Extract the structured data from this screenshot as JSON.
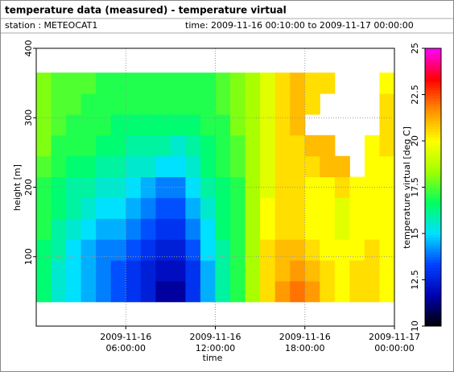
{
  "chart_data": {
    "type": "heatmap",
    "title": "temperature data (measured) - temperature virtual",
    "subtitle_left": "station : METEOCAT1",
    "subtitle_right": "time: 2009-11-16 00:10:00 to 2009-11-17 00:00:00",
    "x_label": "time",
    "y_label": "height [m]",
    "colorbar_label": "temperature virtual [deg C]",
    "xlim": [
      0,
      24
    ],
    "xticks": [
      {
        "value": 6,
        "label": "2009-11-16\n06:00:00"
      },
      {
        "value": 12,
        "label": "2009-11-16\n12:00:00"
      },
      {
        "value": 18,
        "label": "2009-11-16\n18:00:00"
      },
      {
        "value": 24,
        "label": "2009-11-17\n00:00:00"
      }
    ],
    "ylim": [
      0,
      400
    ],
    "yticks": [
      100,
      200,
      300,
      400
    ],
    "zlim": [
      10,
      25
    ],
    "zticks": [
      10,
      12.5,
      15,
      17.5,
      20,
      22.5,
      25
    ],
    "colorscale": [
      "#000000",
      "#0000b0",
      "#0040ff",
      "#00e0ff",
      "#00ff60",
      "#a0ff00",
      "#ffff00",
      "#ff9000",
      "#ff0000",
      "#ff00ff"
    ],
    "grid": true,
    "x": [
      0.5,
      1.5,
      2.5,
      3.5,
      4.5,
      5.5,
      6.5,
      7.5,
      8.5,
      9.5,
      10.5,
      11.5,
      12.5,
      13.5,
      14.5,
      15.5,
      16.5,
      17.5,
      18.5,
      19.5,
      20.5,
      21.5,
      22.5,
      23.5
    ],
    "y": [
      50,
      80,
      110,
      140,
      170,
      200,
      230,
      260,
      290,
      320,
      350
    ],
    "z": [
      [
        16.5,
        15.5,
        15,
        14.5,
        14,
        13.5,
        13,
        12.5,
        11.5,
        11.5,
        13,
        14.5,
        16,
        17,
        18.5,
        20.5,
        21.5,
        22,
        21.5,
        20.5,
        20,
        20.5,
        20.5,
        20
      ],
      [
        16.5,
        15.5,
        15,
        14.5,
        14,
        13.5,
        13,
        12.5,
        12,
        12,
        13,
        14.5,
        16,
        17,
        18.5,
        20.5,
        21,
        21.5,
        21,
        20.5,
        20,
        20.5,
        20.5,
        20
      ],
      [
        16.5,
        16,
        15,
        14.5,
        14,
        14,
        13.5,
        13,
        12.5,
        12.5,
        13.5,
        15,
        16,
        17,
        18.5,
        20.5,
        21,
        21,
        20.5,
        20,
        20,
        20,
        20.5,
        20
      ],
      [
        17,
        16,
        15.5,
        15,
        14.5,
        14.5,
        14,
        13.5,
        13,
        13,
        14,
        15,
        16.5,
        17,
        18.5,
        20,
        20.5,
        20.5,
        20,
        20,
        19.5,
        20,
        20,
        20
      ],
      [
        17,
        16.5,
        16,
        15.5,
        15,
        15,
        14.5,
        14,
        13.5,
        13.5,
        14.5,
        15.5,
        16.5,
        17,
        18.5,
        20,
        20.5,
        20.5,
        20,
        20,
        19.5,
        20,
        20,
        20
      ],
      [
        17,
        16.5,
        16,
        16,
        15.5,
        15.5,
        15,
        14.5,
        14,
        14,
        15,
        16,
        16.5,
        17,
        18.5,
        19.5,
        20.5,
        20.5,
        20,
        20,
        20.5,
        20,
        20,
        20
      ],
      [
        17.5,
        17,
        16.5,
        16.5,
        16,
        16,
        15.5,
        15.5,
        15,
        15,
        15.5,
        16.5,
        17,
        17.5,
        18.5,
        19.5,
        20.5,
        20.5,
        20.5,
        21,
        21,
        null,
        20,
        20
      ],
      [
        18,
        17,
        17,
        17,
        16.5,
        16.5,
        16,
        16,
        16,
        15.5,
        16,
        16.5,
        17,
        17.5,
        18.5,
        19.5,
        20.5,
        20.5,
        21,
        21,
        null,
        null,
        20,
        20.5
      ],
      [
        18,
        17.5,
        17,
        17,
        17,
        16.5,
        16.5,
        16.5,
        16.5,
        16.5,
        16.5,
        17,
        17,
        18,
        18.5,
        19.5,
        20.5,
        21,
        null,
        null,
        null,
        null,
        null,
        20.5
      ],
      [
        18,
        17.5,
        17.5,
        17,
        17,
        17,
        17,
        17,
        17,
        17,
        17,
        17,
        17.5,
        18,
        18.5,
        19.5,
        20.5,
        21,
        20.5,
        null,
        null,
        null,
        null,
        20.5
      ],
      [
        18,
        17.5,
        17.5,
        17.5,
        17,
        17,
        17,
        17,
        17,
        17,
        17,
        17,
        17.5,
        18,
        18.5,
        19.5,
        20.5,
        21,
        20.5,
        20.5,
        null,
        null,
        null,
        20
      ]
    ]
  }
}
